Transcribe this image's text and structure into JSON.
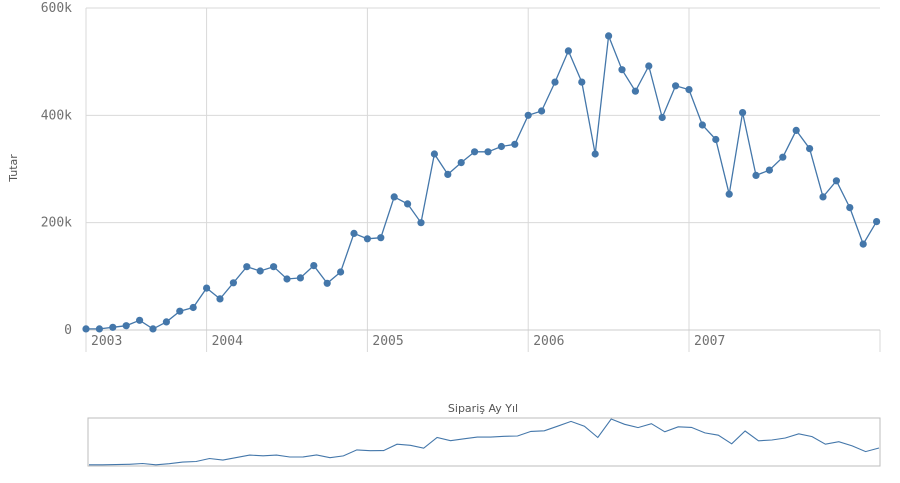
{
  "chart_data": {
    "type": "line",
    "ylabel": "Tutar",
    "xlabel": "Sipariş Ay Yıl",
    "ylim": [
      0,
      600000
    ],
    "xlim": [
      0,
      61
    ],
    "y_ticks": [
      {
        "value": 0,
        "label": "0"
      },
      {
        "value": 200000,
        "label": "200k"
      },
      {
        "value": 400000,
        "label": "400k"
      },
      {
        "value": 600000,
        "label": "600k"
      }
    ],
    "x_ticks": [
      {
        "index": 0,
        "label": "2003"
      },
      {
        "index": 9,
        "label": "2004"
      },
      {
        "index": 21,
        "label": "2005"
      },
      {
        "index": 33,
        "label": "2006"
      },
      {
        "index": 45,
        "label": "2007"
      }
    ],
    "grid": true,
    "line_color": "#4477aa",
    "series": [
      {
        "values": [
          2000,
          2000,
          5000,
          8000,
          18000,
          2000,
          15000,
          35000,
          42000,
          78000,
          58000,
          88000,
          118000,
          110000,
          118000,
          95000,
          97000,
          120000,
          87000,
          108000,
          180000,
          170000,
          172000,
          248000,
          235000,
          200000,
          328000,
          290000,
          312000,
          332000,
          332000,
          342000,
          346000,
          400000,
          408000,
          462000,
          520000,
          462000,
          328000,
          548000,
          485000,
          445000,
          492000,
          396000,
          455000,
          448000,
          382000,
          355000,
          253000,
          405000,
          288000,
          298000,
          322000,
          372000,
          338000,
          248000,
          278000,
          228000,
          160000,
          202000
        ]
      }
    ]
  }
}
